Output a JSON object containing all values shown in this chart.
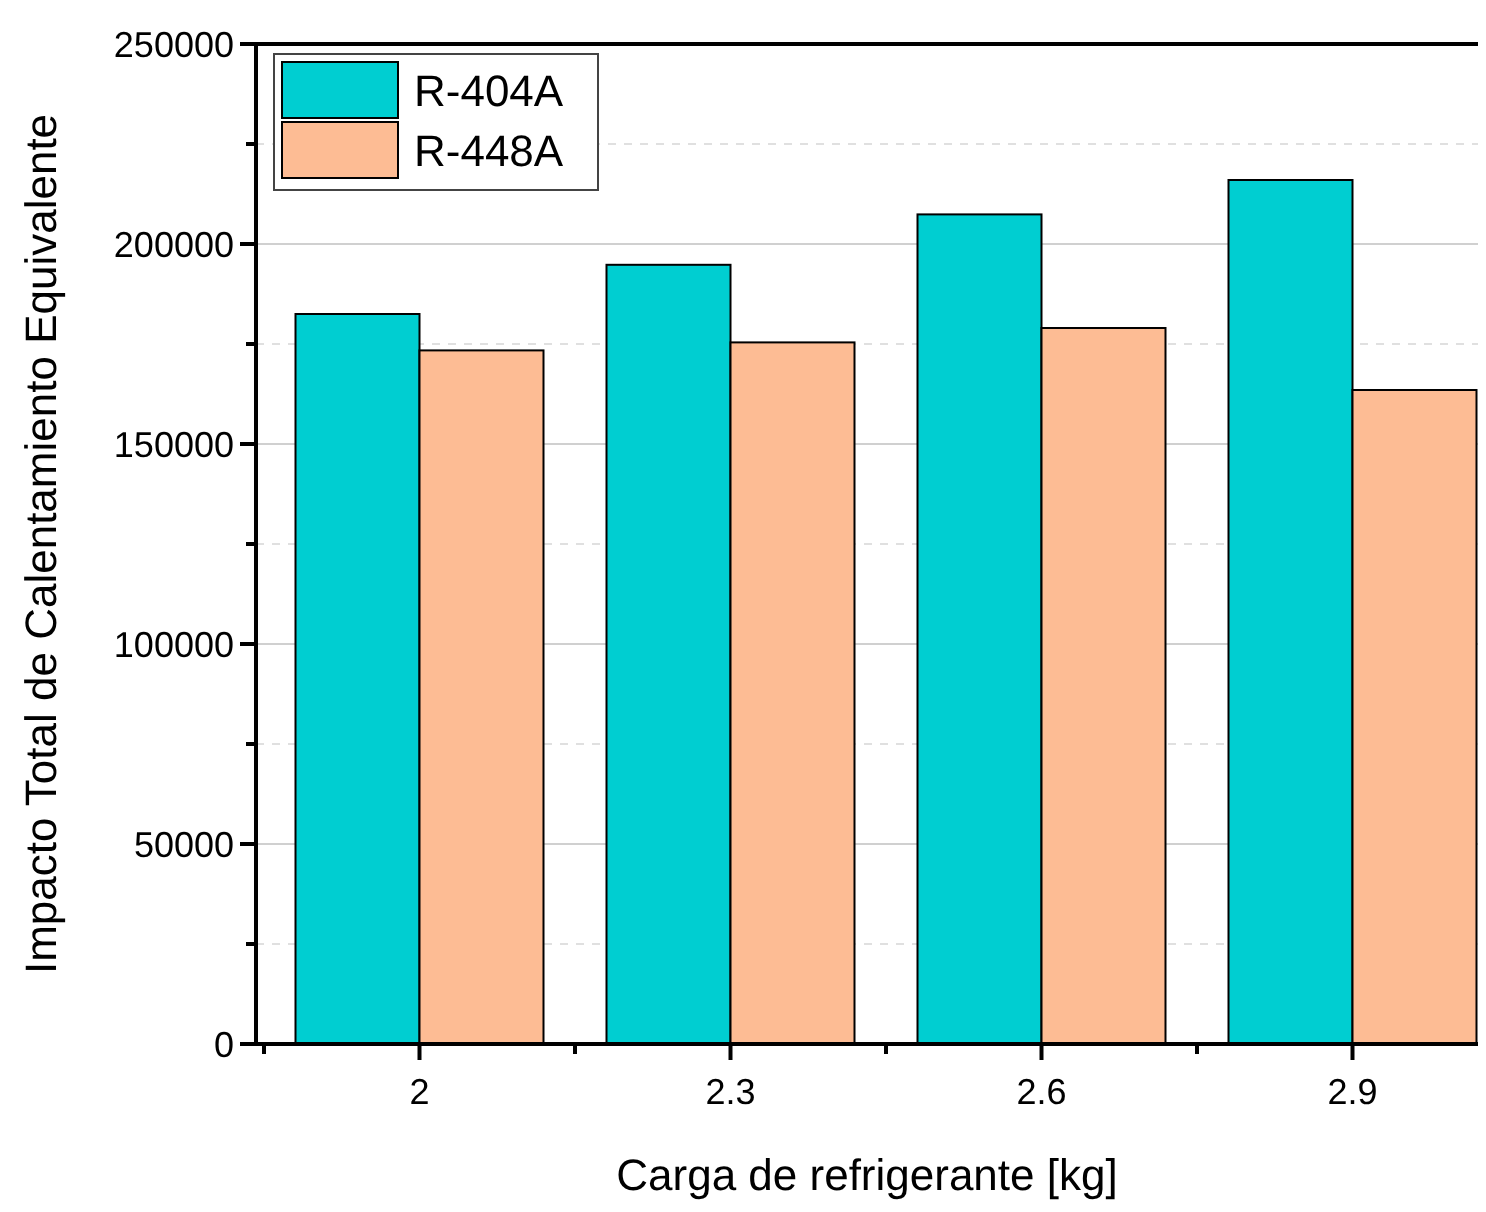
{
  "chart_data": {
    "type": "bar",
    "xlabel": "Carga de refrigerante [kg]",
    "ylabel": "Impacto Total de Calentamiento Equivalente",
    "categories": [
      "2",
      "2.3",
      "2.6",
      "2.9"
    ],
    "series": [
      {
        "name": "R-404A",
        "color": "#00ced1",
        "values": [
          182500,
          194800,
          207400,
          216000
        ]
      },
      {
        "name": "R-448A",
        "color": "#fdbc94",
        "values": [
          173400,
          175400,
          179000,
          163500
        ]
      }
    ],
    "ylim": [
      0,
      250000
    ],
    "yticks": [
      0,
      50000,
      100000,
      150000,
      200000,
      250000
    ],
    "grid": true,
    "legend": "top left"
  }
}
